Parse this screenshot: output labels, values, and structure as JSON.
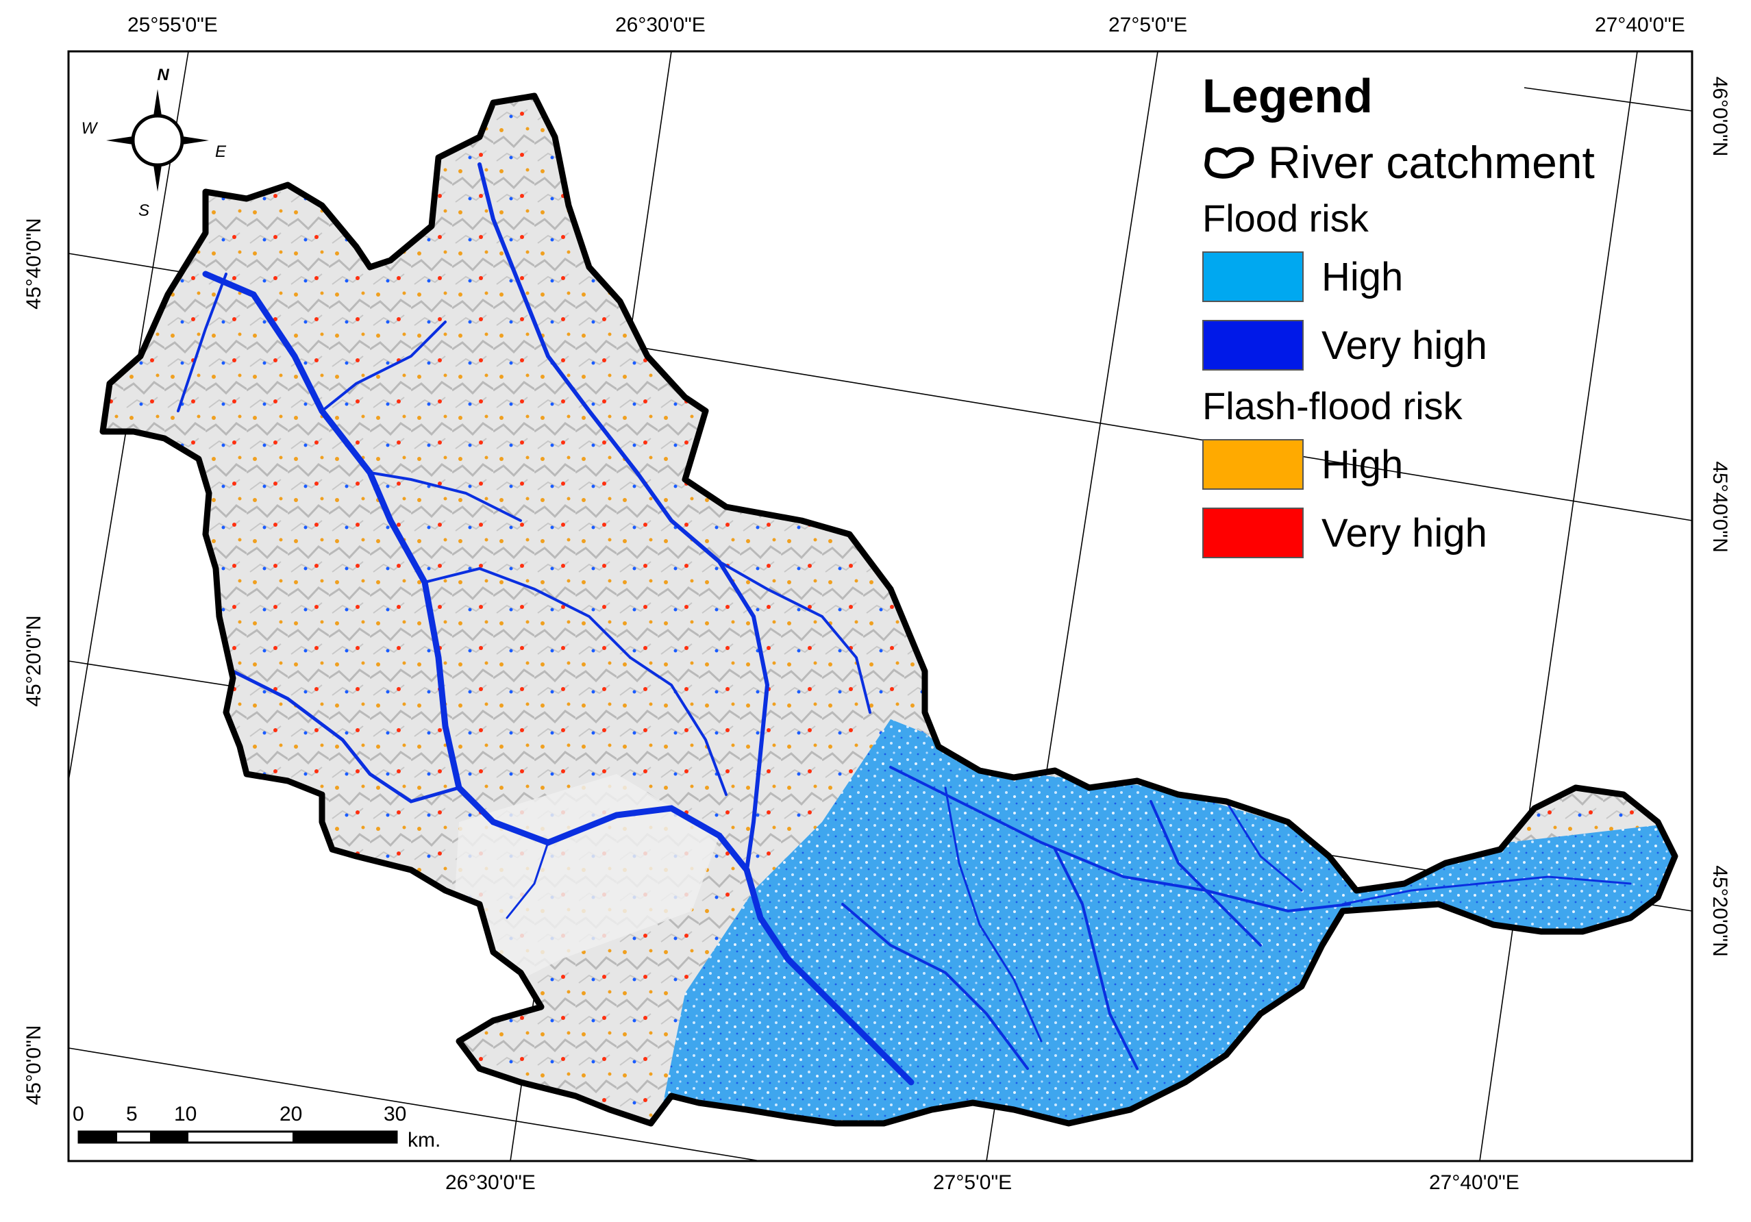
{
  "map": {
    "top_longitude_labels": [
      "25°55'0\"E",
      "26°30'0\"E",
      "27°5'0\"E",
      "27°40'0\"E"
    ],
    "bottom_longitude_labels": [
      "26°30'0\"E",
      "27°5'0\"E",
      "27°40'0\"E"
    ],
    "left_latitude_labels": [
      "45°40'0\"N",
      "45°20'0\"N",
      "45°0'0\"N"
    ],
    "right_latitude_labels": [
      "46°0'0\"N",
      "45°40'0\"N",
      "45°20'0\"N"
    ]
  },
  "compass": {
    "n": "N",
    "s": "S",
    "e": "E",
    "w": "W"
  },
  "legend": {
    "title": "Legend",
    "catchment_label": "River catchment",
    "flood_group": "Flood risk",
    "flood_items": [
      {
        "label": "High",
        "color": "#00A8F0"
      },
      {
        "label": "Very high",
        "color": "#0019E8"
      }
    ],
    "flash_group": "Flash-flood risk",
    "flash_items": [
      {
        "label": "High",
        "color": "#FFAA00"
      },
      {
        "label": "Very high",
        "color": "#FF0000"
      }
    ]
  },
  "scalebar": {
    "ticks": [
      "0",
      "5",
      "10",
      "20",
      "30"
    ],
    "unit": "km."
  },
  "colors": {
    "terrain": "#dcdcdc",
    "boundary": "#000000",
    "plain": "#59b4ef",
    "river": "#0a2fe0"
  }
}
